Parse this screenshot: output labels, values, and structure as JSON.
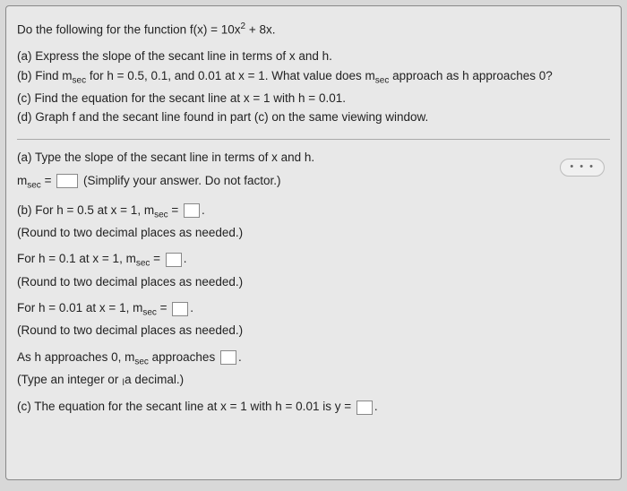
{
  "problem": {
    "intro_prefix": "Do the following for the function f(x) = 10x",
    "intro_exp": "2",
    "intro_suffix": " + 8x.",
    "part_a": "(a) Express the slope of the secant line in terms of x and h.",
    "part_b_prefix": "(b) Find m",
    "part_b_sub": "sec",
    "part_b_mid": " for h = 0.5, 0.1, and 0.01 at x = 1. What value does m",
    "part_b_sub2": "sec",
    "part_b_suffix": " approach as h approaches 0?",
    "part_c": "(c) Find the equation for the secant line at x = 1 with h = 0.01.",
    "part_d": "(d) Graph f and the secant line found in part (c) on the same viewing window."
  },
  "dots": "• • •",
  "answers": {
    "a_prompt": "(a) Type the slope of the secant line in terms of x and h.",
    "a_lhs": "m",
    "a_sub": "sec",
    "a_eq": " = ",
    "a_hint": " (Simplify your answer. Do not factor.)",
    "b1_prefix": "(b) For h = 0.5 at x = 1, m",
    "b1_sub": "sec",
    "b1_eq": " = ",
    "b1_period": ".",
    "round_hint": "(Round to two decimal places as needed.)",
    "b2_prefix": "For h = 0.1 at x = 1, m",
    "b2_sub": "sec",
    "b2_eq": " = ",
    "b2_period": ".",
    "b3_prefix": "For h = 0.01 at x = 1, m",
    "b3_sub": "sec",
    "b3_eq": " = ",
    "b3_period": ".",
    "approach_prefix": "As h approaches 0, m",
    "approach_sub": "sec",
    "approach_mid": " approaches ",
    "approach_period": ".",
    "type_hint_prefix": "(Type an integer or ",
    "type_hint_cursor": "a",
    "type_hint_suffix": " decimal.)",
    "c_prompt": "(c) The equation for the secant line at x = 1 with h = 0.01 is y = ",
    "c_period": "."
  }
}
